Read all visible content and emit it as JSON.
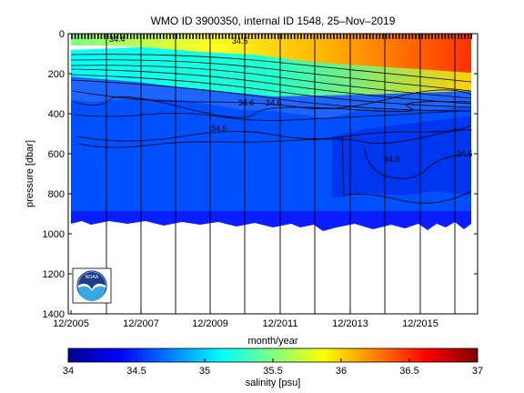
{
  "chart_data": {
    "type": "heatmap",
    "title": "WMO ID 3900350, internal ID 1548, 25–Nov–2019",
    "xlabel": "month/year",
    "ylabel": "pressure [dbar]",
    "x_ticks": [
      "12/2005",
      "12/2007",
      "12/2009",
      "12/2011",
      "12/2013",
      "12/2015"
    ],
    "x_range": [
      "12/2005",
      "08/2016"
    ],
    "y_ticks": [
      0,
      200,
      400,
      600,
      800,
      1000,
      1200,
      1400
    ],
    "ylim": [
      1400,
      0
    ],
    "y_reversed": true,
    "profile_max_pressure_dbar": 980,
    "colorbar": {
      "label": "salinity [psu]",
      "ticks": [
        34,
        34.5,
        35,
        35.5,
        36,
        36.5,
        37
      ],
      "range": [
        34,
        37
      ],
      "colormap": "jet"
    },
    "contour_labels": [
      "34.6",
      "34.6",
      "34.6",
      "34.5",
      "34.5",
      "34.4",
      "34.5"
    ],
    "series": [
      {
        "x": [
          "12/2005",
          "06/2007",
          "12/2009",
          "12/2011",
          "12/2013",
          "08/2016"
        ],
        "surface_salinity_psu": [
          35.2,
          35.6,
          35.8,
          36.0,
          36.5,
          36.7
        ]
      }
    ],
    "logo": "NOAA",
    "grid": false
  }
}
